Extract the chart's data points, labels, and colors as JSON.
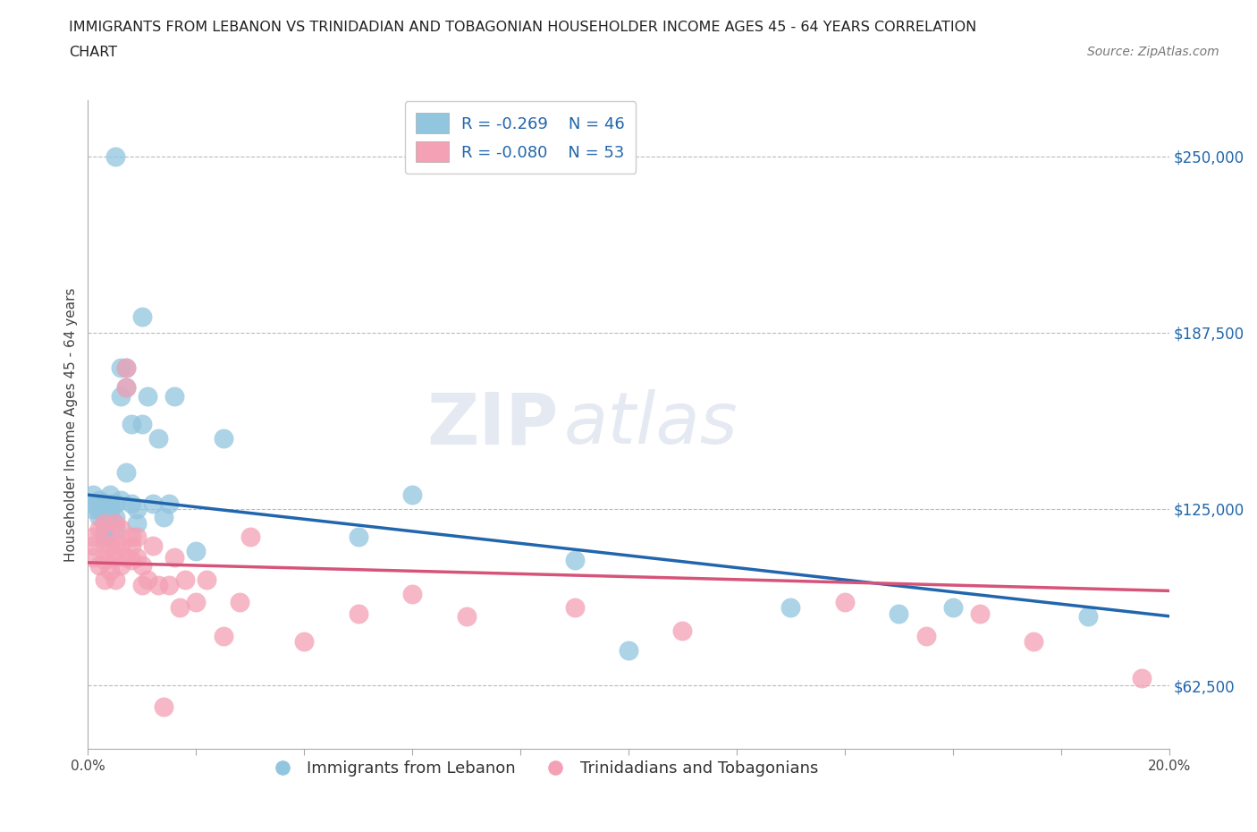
{
  "title_line1": "IMMIGRANTS FROM LEBANON VS TRINIDADIAN AND TOBAGONIAN HOUSEHOLDER INCOME AGES 45 - 64 YEARS CORRELATION",
  "title_line2": "CHART",
  "source": "Source: ZipAtlas.com",
  "ylabel": "Householder Income Ages 45 - 64 years",
  "xlim": [
    0.0,
    0.2
  ],
  "ylim": [
    40000,
    270000
  ],
  "yticks": [
    62500,
    125000,
    187500,
    250000
  ],
  "ytick_labels": [
    "$62,500",
    "$125,000",
    "$187,500",
    "$250,000"
  ],
  "xticks": [
    0.0,
    0.02,
    0.04,
    0.06,
    0.08,
    0.1,
    0.12,
    0.14,
    0.16,
    0.18,
    0.2
  ],
  "xtick_labels": [
    "0.0%",
    "",
    "",
    "",
    "",
    "",
    "",
    "",
    "",
    "",
    "20.0%"
  ],
  "legend_r1": "R = -0.269",
  "legend_n1": "N = 46",
  "legend_r2": "R = -0.080",
  "legend_n2": "N = 53",
  "color_blue": "#92c5de",
  "color_pink": "#f4a0b5",
  "color_blue_line": "#2166ac",
  "color_pink_line": "#d6537a",
  "watermark_zip": "ZIP",
  "watermark_atlas": "atlas",
  "blue_scatter_x": [
    0.001,
    0.001,
    0.001,
    0.002,
    0.002,
    0.002,
    0.003,
    0.003,
    0.003,
    0.003,
    0.004,
    0.004,
    0.004,
    0.004,
    0.005,
    0.005,
    0.005,
    0.005,
    0.006,
    0.006,
    0.006,
    0.007,
    0.007,
    0.007,
    0.008,
    0.008,
    0.009,
    0.009,
    0.01,
    0.01,
    0.011,
    0.012,
    0.013,
    0.014,
    0.015,
    0.016,
    0.02,
    0.025,
    0.05,
    0.06,
    0.09,
    0.1,
    0.13,
    0.15,
    0.16,
    0.185
  ],
  "blue_scatter_y": [
    125000,
    130000,
    127000,
    128000,
    122000,
    125000,
    127000,
    120000,
    117000,
    115000,
    125000,
    122000,
    130000,
    127000,
    250000,
    127000,
    122000,
    118000,
    175000,
    165000,
    128000,
    175000,
    168000,
    138000,
    155000,
    127000,
    125000,
    120000,
    193000,
    155000,
    165000,
    127000,
    150000,
    122000,
    127000,
    165000,
    110000,
    150000,
    115000,
    130000,
    107000,
    75000,
    90000,
    88000,
    90000,
    87000
  ],
  "pink_scatter_x": [
    0.001,
    0.001,
    0.001,
    0.002,
    0.002,
    0.003,
    0.003,
    0.003,
    0.003,
    0.004,
    0.004,
    0.004,
    0.005,
    0.005,
    0.005,
    0.005,
    0.006,
    0.006,
    0.006,
    0.007,
    0.007,
    0.007,
    0.008,
    0.008,
    0.008,
    0.009,
    0.009,
    0.01,
    0.01,
    0.011,
    0.012,
    0.013,
    0.014,
    0.015,
    0.016,
    0.017,
    0.018,
    0.02,
    0.022,
    0.025,
    0.028,
    0.03,
    0.04,
    0.05,
    0.06,
    0.07,
    0.09,
    0.11,
    0.14,
    0.155,
    0.165,
    0.175,
    0.195
  ],
  "pink_scatter_y": [
    115000,
    112000,
    108000,
    118000,
    105000,
    120000,
    113000,
    107000,
    100000,
    112000,
    108000,
    103000,
    120000,
    113000,
    108000,
    100000,
    118000,
    112000,
    105000,
    175000,
    168000,
    108000,
    115000,
    112000,
    107000,
    115000,
    108000,
    105000,
    98000,
    100000,
    112000,
    98000,
    55000,
    98000,
    108000,
    90000,
    100000,
    92000,
    100000,
    80000,
    92000,
    115000,
    78000,
    88000,
    95000,
    87000,
    90000,
    82000,
    92000,
    80000,
    88000,
    78000,
    65000
  ]
}
